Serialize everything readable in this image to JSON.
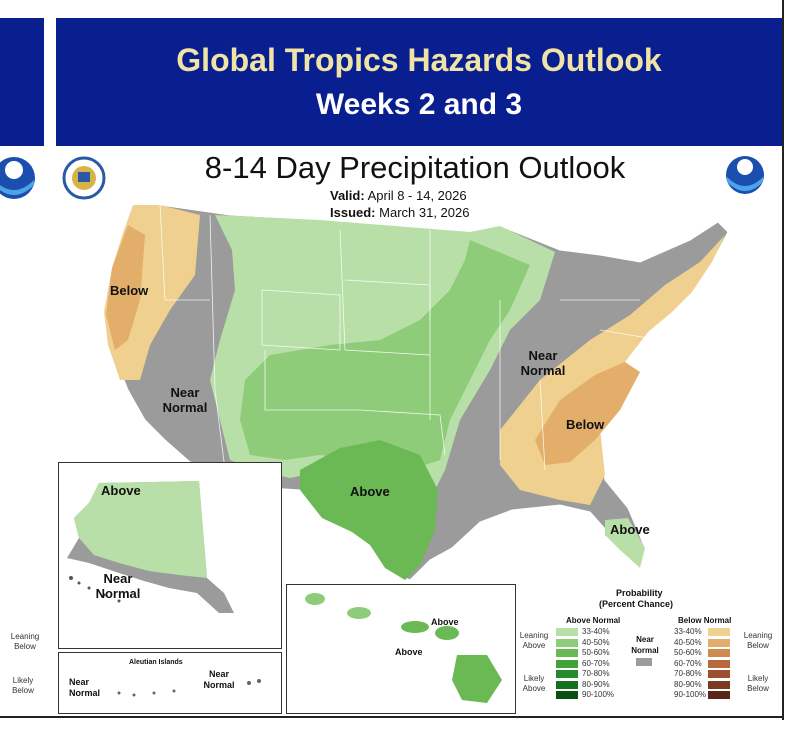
{
  "header": {
    "title": "Global Tropics Hazards Outlook",
    "subtitle": "Weeks 2 and 3"
  },
  "map": {
    "title": "8-14 Day Precipitation Outlook",
    "valid_label": "Valid:",
    "valid_value": "April 8 - 14, 2026",
    "issued_label": "Issued:",
    "issued_value": "March 31, 2026",
    "region_labels": {
      "west_below": "Below",
      "west_near": "Near Normal",
      "southwest_above": "Above",
      "east_near": "Near Normal",
      "southeast_below": "Below",
      "florida_above": "Above",
      "alaska_above": "Above",
      "alaska_near": "Near Normal",
      "aleutian_title": "Aleutian Islands",
      "aleutian_near_left": "Near Normal",
      "aleutian_near_right": "Near Normal",
      "hawaii_above_1": "Above",
      "hawaii_above_2": "Above"
    }
  },
  "legend": {
    "title": "Probability",
    "subtitle": "(Percent Chance)",
    "above_header": "Above Normal",
    "below_header": "Below Normal",
    "near_label": "Near Normal",
    "leaning_above": "Leaning Above",
    "likely_above": "Likely Above",
    "leaning_below": "Leaning Below",
    "likely_below": "Likely Below",
    "bins": [
      "33-40%",
      "40-50%",
      "50-60%",
      "60-70%",
      "70-80%",
      "80-90%",
      "90-100%"
    ],
    "above_colors": [
      "#b9dfa8",
      "#8fcc7a",
      "#6ab954",
      "#3fa33a",
      "#248a2a",
      "#13701f",
      "#0a4f13"
    ],
    "below_colors": [
      "#f0d08f",
      "#e2ae6a",
      "#cf8a4f",
      "#b86a3d",
      "#9c4e2e",
      "#7d3a22",
      "#5b2617"
    ],
    "near_color": "#9b9b9b",
    "side_leaning_below": "Leaning Below",
    "side_likely_below": "Likely Below"
  },
  "colors": {
    "banner": "#0a1f8f",
    "banner_title": "#efe3a6"
  }
}
